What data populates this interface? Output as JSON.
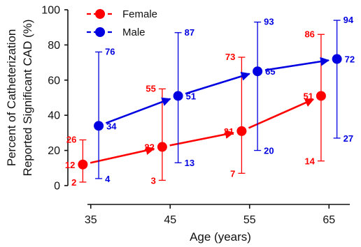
{
  "chart_data": {
    "type": "scatter",
    "xlabel": "Age (years)",
    "ylabel": [
      "Percent of Catheterization",
      "Reported Significant CAD (%)"
    ],
    "x_ticks": [
      35,
      45,
      55,
      65
    ],
    "y_ticks": [
      0,
      20,
      40,
      60,
      80,
      100
    ],
    "xlim": [
      31.5,
      68.5
    ],
    "ylim": [
      0,
      100
    ],
    "legend_position": "top-left",
    "series": [
      {
        "name": "Female",
        "color": "#ff0000",
        "x_offset": -1,
        "label_side": "left",
        "points": [
          {
            "x": 35,
            "y": 12,
            "low": 2,
            "high": 26
          },
          {
            "x": 45,
            "y": 22,
            "low": 3,
            "high": 55
          },
          {
            "x": 55,
            "y": 31,
            "low": 7,
            "high": 73
          },
          {
            "x": 65,
            "y": 51,
            "low": 14,
            "high": 86
          }
        ]
      },
      {
        "name": "Male",
        "color": "#0000e0",
        "x_offset": 1,
        "label_side": "right",
        "points": [
          {
            "x": 35,
            "y": 34,
            "low": 4,
            "high": 76
          },
          {
            "x": 45,
            "y": 51,
            "low": 13,
            "high": 87
          },
          {
            "x": 55,
            "y": 65,
            "low": 20,
            "high": 93
          },
          {
            "x": 65,
            "y": 72,
            "low": 27,
            "high": 94
          }
        ]
      }
    ]
  }
}
